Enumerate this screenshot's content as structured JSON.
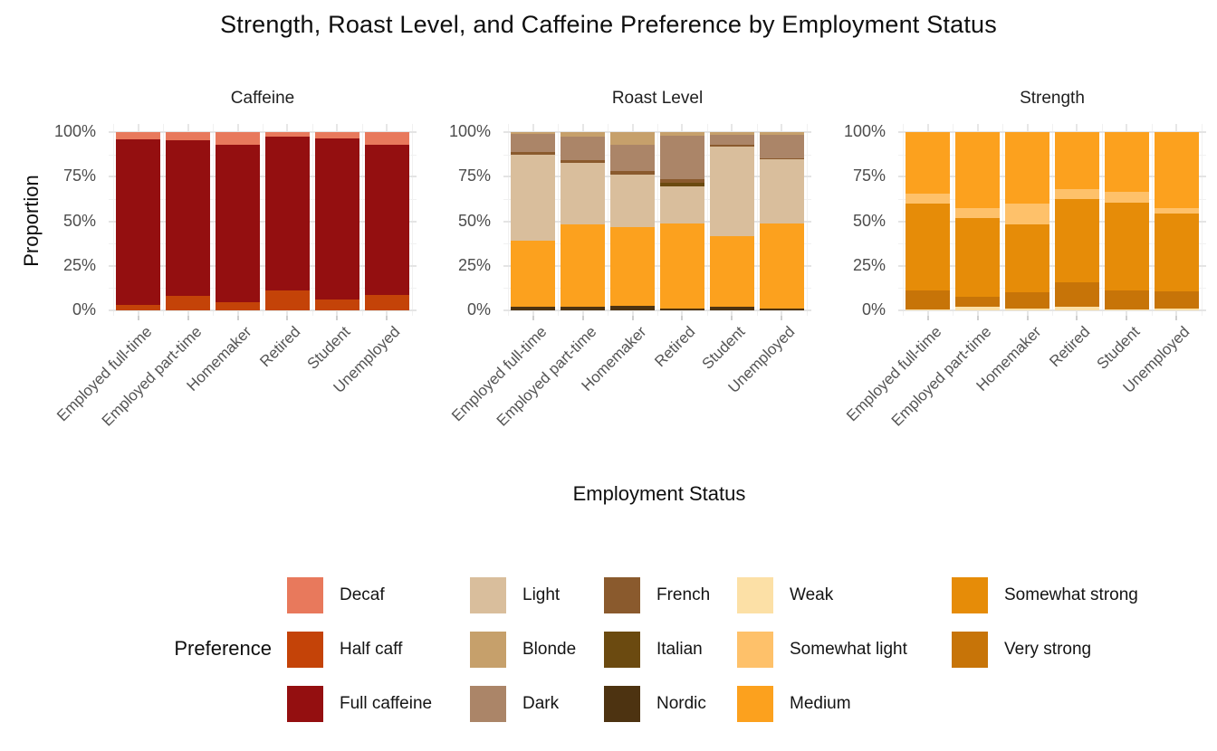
{
  "title": "Strength, Roast Level, and Caffeine Preference by Employment Status",
  "axes": {
    "y_label": "Proportion",
    "x_label": "Employment Status",
    "y_ticks": [
      {
        "label": "100%",
        "value": 100
      },
      {
        "label": "75%",
        "value": 75
      },
      {
        "label": "50%",
        "value": 50
      },
      {
        "label": "25%",
        "value": 25
      },
      {
        "label": "0%",
        "value": 0
      }
    ]
  },
  "colors": {
    "Decaf": "#E8795C",
    "Half caff": "#C44308",
    "Full caffeine": "#940F10",
    "Light": "#D9BE9C",
    "Blonde": "#C6A06B",
    "Dark": "#AB8568",
    "French": "#8A5A2D",
    "Italian": "#6B4A10",
    "Nordic": "#4D3311",
    "Weak": "#FCE0A6",
    "Somewhat light": "#FEC16A",
    "Medium": "#FCA11E",
    "Somewhat strong": "#E68C08",
    "Very strong": "#C77408"
  },
  "legend": {
    "title": "Preference",
    "columns": [
      [
        "Decaf",
        "Half caff",
        "Full caffeine"
      ],
      [
        "Light",
        "Blonde",
        "Dark"
      ],
      [
        "French",
        "Italian",
        "Nordic"
      ],
      [
        "Weak",
        "Somewhat light",
        "Medium"
      ],
      [
        "Somewhat strong",
        "Very strong"
      ]
    ]
  },
  "chart_data": {
    "type": "bar",
    "subtype": "100%-stacked-bar, 3 facets",
    "title": "Strength, Roast Level, and Caffeine Preference by Employment Status",
    "xlabel": "Employment Status",
    "ylabel": "Proportion",
    "ylim": [
      0,
      100
    ],
    "grid": true,
    "legend_position": "bottom",
    "categories": [
      "Employed full-time",
      "Employed part-time",
      "Homemaker",
      "Retired",
      "Student",
      "Unemployed"
    ],
    "facets": [
      {
        "title": "Caffeine",
        "stack_order_bottom_to_top": [
          "Half caff",
          "Full caffeine",
          "Decaf"
        ],
        "series": [
          {
            "name": "Half caff",
            "values": [
              3,
              8,
              4.5,
              11,
              6,
              8.5
            ]
          },
          {
            "name": "Full caffeine",
            "values": [
              93,
              87.5,
              88.5,
              86.5,
              90.5,
              84.5
            ]
          },
          {
            "name": "Decaf",
            "values": [
              4,
              4.5,
              7,
              2.5,
              3.5,
              7
            ]
          }
        ]
      },
      {
        "title": "Roast Level",
        "stack_order_bottom_to_top": [
          "Nordic",
          "Medium",
          "Light",
          "Italian",
          "French",
          "Dark",
          "Blonde"
        ],
        "series": [
          {
            "name": "Nordic",
            "values": [
              2,
              2,
              2.5,
              1,
              2,
              1
            ]
          },
          {
            "name": "Medium",
            "values": [
              37,
              46,
              44,
              47.5,
              39.5,
              47.5
            ]
          },
          {
            "name": "Light",
            "values": [
              48.5,
              35,
              29.5,
              21,
              50.5,
              36.5
            ]
          },
          {
            "name": "Italian",
            "values": [
              0,
              0,
              0,
              2,
              0,
              0
            ]
          },
          {
            "name": "French",
            "values": [
              1.5,
              1.5,
              2,
              2,
              1,
              0.5
            ]
          },
          {
            "name": "Dark",
            "values": [
              10,
              13,
              15,
              24.5,
              5.5,
              13
            ]
          },
          {
            "name": "Blonde",
            "values": [
              1,
              2.5,
              7,
              2,
              1.5,
              1.5
            ]
          }
        ]
      },
      {
        "title": "Strength",
        "stack_order_bottom_to_top": [
          "Weak",
          "Very strong",
          "Somewhat strong",
          "Somewhat light",
          "Medium"
        ],
        "series": [
          {
            "name": "Weak",
            "values": [
              0.5,
              2,
              1,
              2,
              0.5,
              1
            ]
          },
          {
            "name": "Very strong",
            "values": [
              10.5,
              5.5,
              9,
              13.5,
              10.5,
              9.5
            ]
          },
          {
            "name": "Somewhat strong",
            "values": [
              49,
              44.5,
              38,
              47,
              49.5,
              44
            ]
          },
          {
            "name": "Somewhat light",
            "values": [
              5.5,
              5.5,
              12,
              5.5,
              6,
              3
            ]
          },
          {
            "name": "Medium",
            "values": [
              34.5,
              42.5,
              40,
              32,
              33.5,
              42.5
            ]
          }
        ]
      }
    ]
  }
}
